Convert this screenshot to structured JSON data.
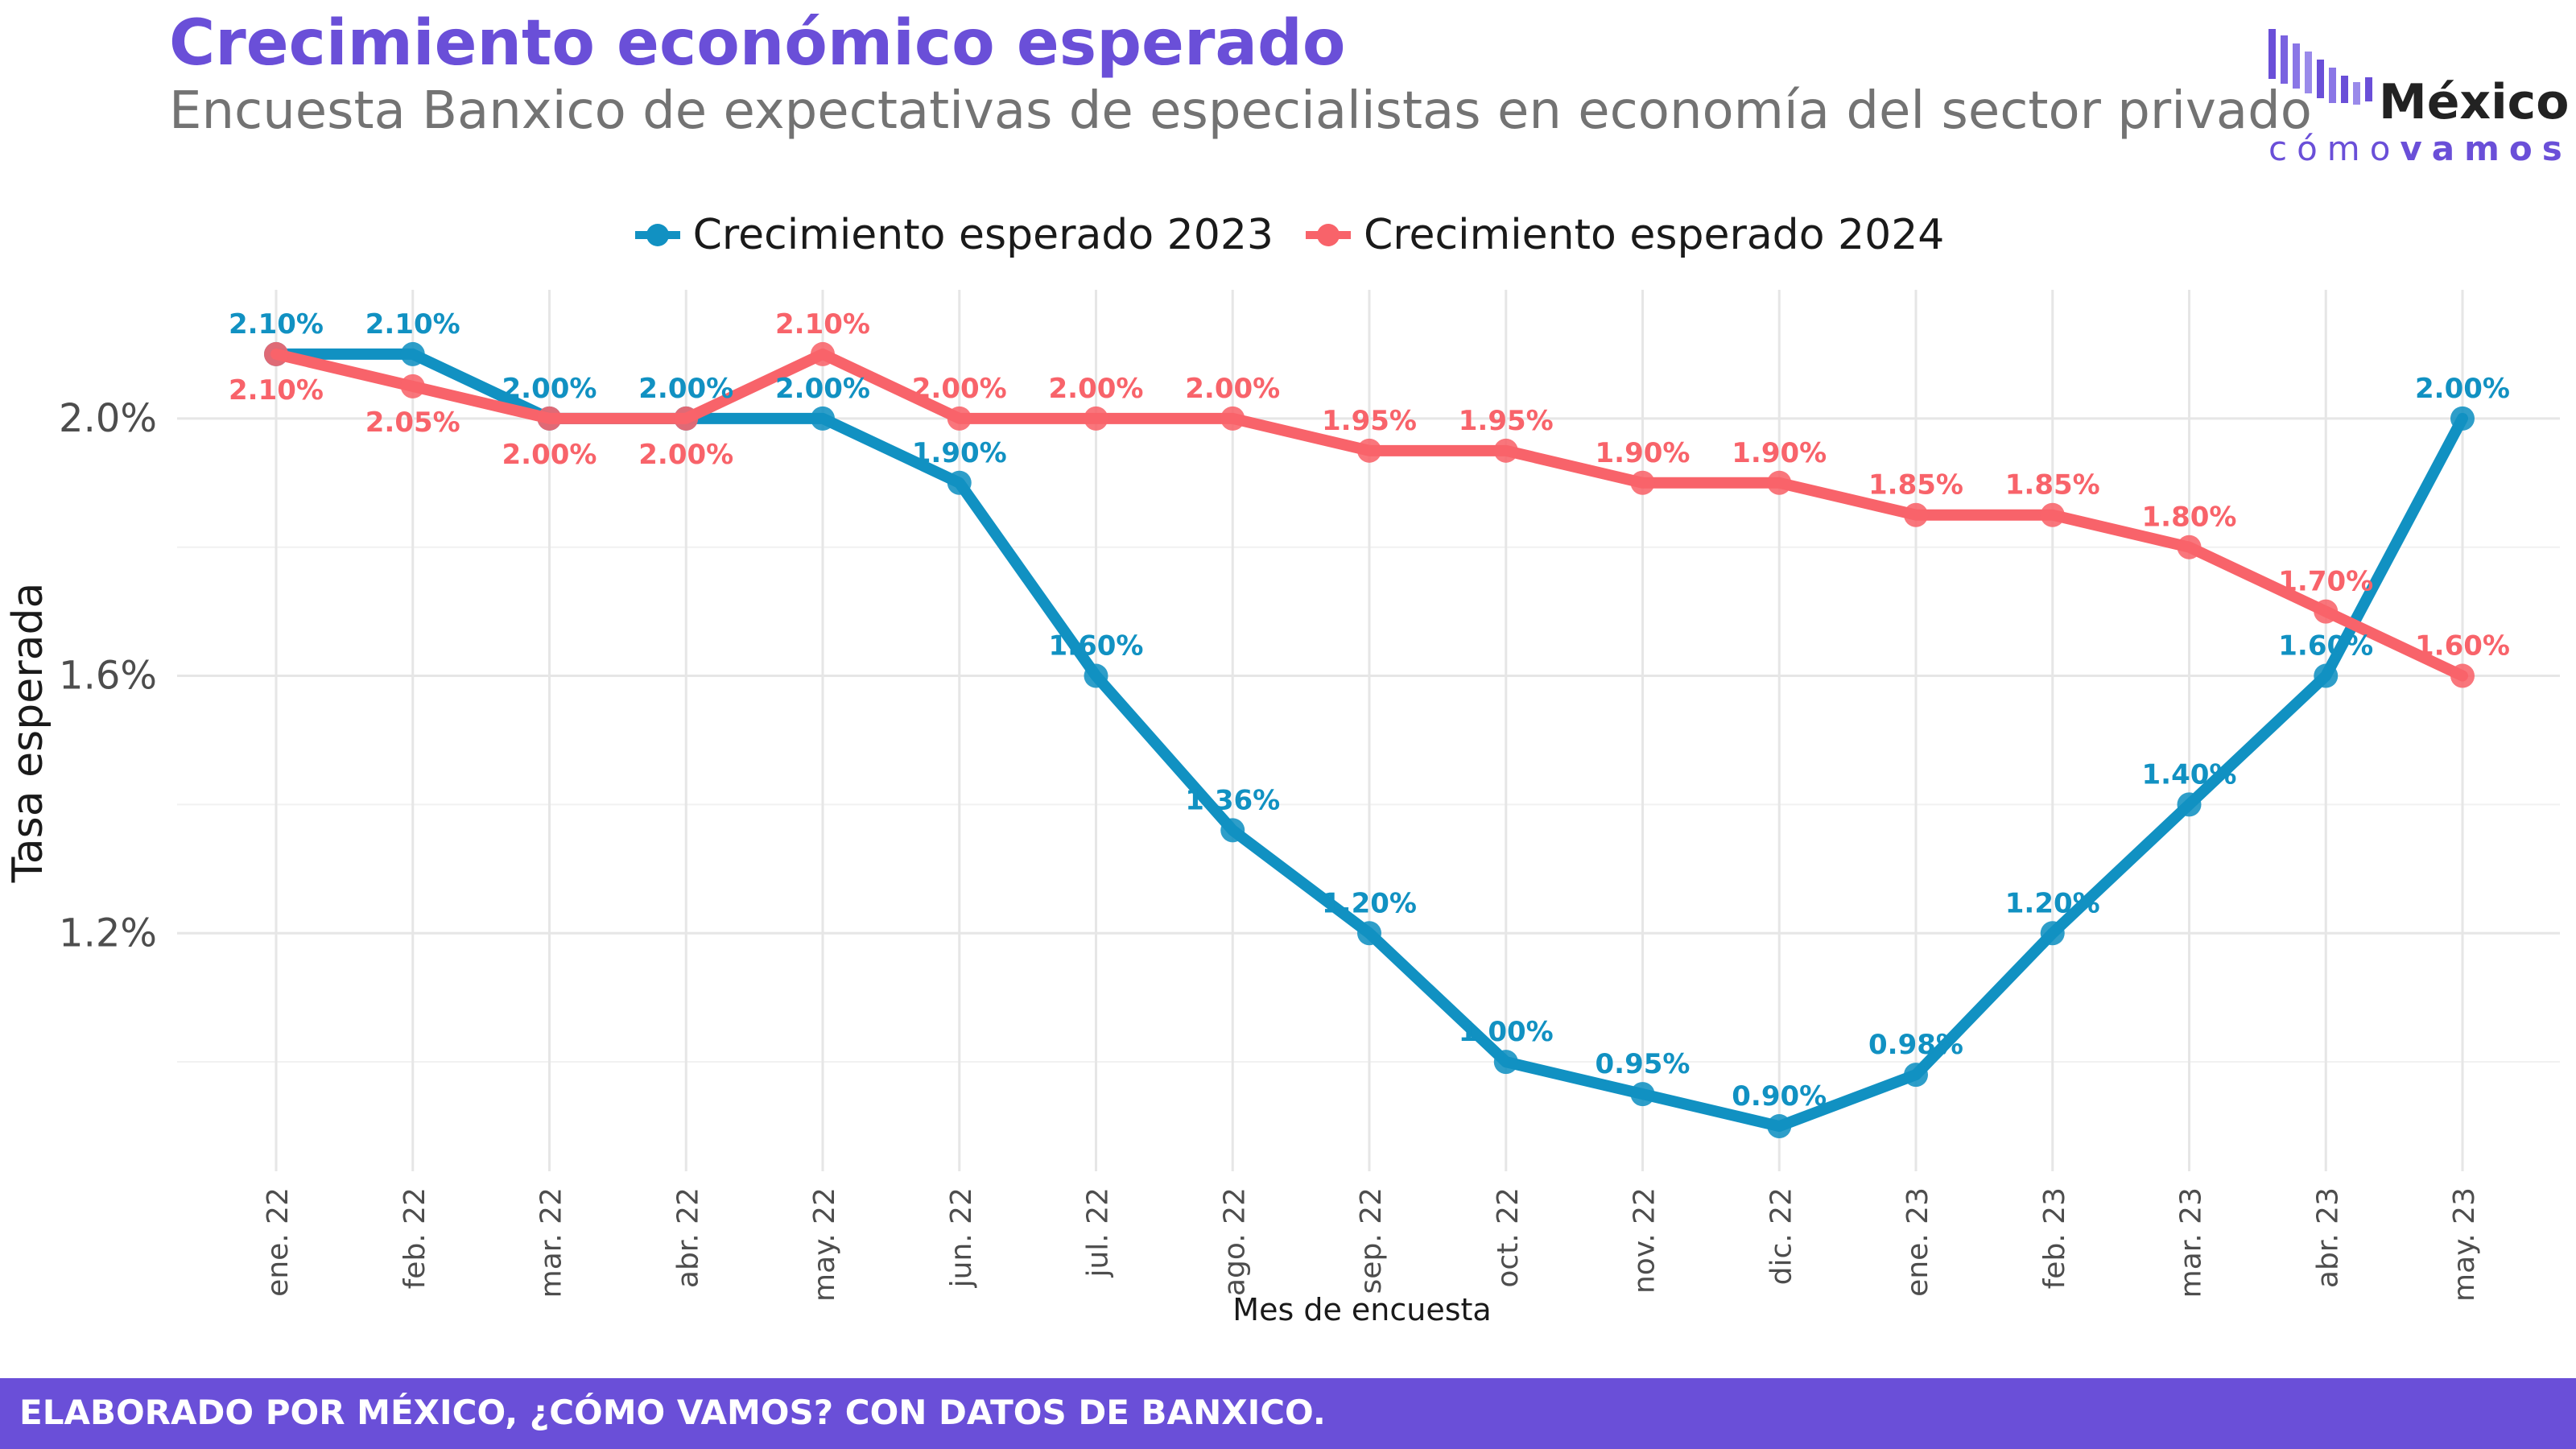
{
  "header": {
    "title": "Crecimiento económico esperado",
    "subtitle": "Encuesta Banxico de expectativas de especialistas en economía del sector privado"
  },
  "logo": {
    "name": "México",
    "tagline_light": "cómo",
    "tagline_bold": "vamos"
  },
  "footer": {
    "text": "ELABORADO POR MÉXICO, ¿CÓMO VAMOS? CON DATOS DE BANXICO."
  },
  "colors": {
    "series_2023": "#1191c2",
    "series_2024": "#f8636a",
    "brand": "#6a4fd8",
    "grid": "#e6e6e6"
  },
  "chart_data": {
    "type": "line",
    "xlabel": "Mes de encuesta",
    "ylabel": "Tasa esperada",
    "ylim": [
      0.83,
      2.2
    ],
    "yticks": [
      1.2,
      1.6,
      2.0
    ],
    "ytick_labels": [
      "1.2%",
      "1.6%",
      "2.0%"
    ],
    "grid": true,
    "legend_position": "top",
    "categories": [
      "ene. 22",
      "feb. 22",
      "mar. 22",
      "abr. 22",
      "may. 22",
      "jun. 22",
      "jul. 22",
      "ago. 22",
      "sep. 22",
      "oct. 22",
      "nov. 22",
      "dic. 22",
      "ene. 23",
      "feb. 23",
      "mar. 23",
      "abr. 23",
      "may. 23"
    ],
    "series": [
      {
        "name": "Crecimiento esperado 2023",
        "color": "#1191c2",
        "values": [
          2.1,
          2.1,
          2.0,
          2.0,
          2.0,
          1.9,
          1.6,
          1.36,
          1.2,
          1.0,
          0.95,
          0.9,
          0.98,
          1.2,
          1.4,
          1.6,
          2.0
        ],
        "labels": [
          "2.10%",
          "2.10%",
          "2.00%",
          "2.00%",
          "2.00%",
          "1.90%",
          "1.60%",
          "1.36%",
          "1.20%",
          "1.00%",
          "0.95%",
          "0.90%",
          "0.98%",
          "1.20%",
          "1.40%",
          "1.60%",
          "2.00%"
        ]
      },
      {
        "name": "Crecimiento esperado 2024",
        "color": "#f8636a",
        "values": [
          2.1,
          2.05,
          2.0,
          2.0,
          2.1,
          2.0,
          2.0,
          2.0,
          1.95,
          1.95,
          1.9,
          1.9,
          1.85,
          1.85,
          1.8,
          1.7,
          1.6
        ],
        "labels": [
          "2.10%",
          "2.05%",
          "2.00%",
          "2.00%",
          "2.10%",
          "2.00%",
          "2.00%",
          "2.00%",
          "1.95%",
          "1.95%",
          "1.90%",
          "1.90%",
          "1.85%",
          "1.85%",
          "1.80%",
          "1.70%",
          "1.60%"
        ]
      }
    ]
  }
}
